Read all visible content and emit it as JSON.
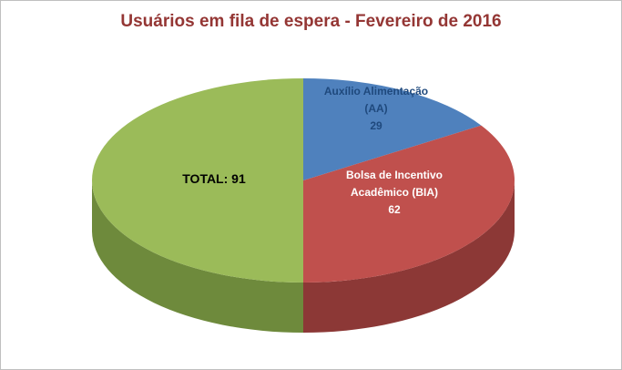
{
  "chart_data": {
    "type": "pie",
    "style": "pie3d",
    "title": "Usuários em fila de espera - Fevereiro de 2016",
    "title_color": "#943634",
    "start_angle_deg": 0,
    "direction": "clockwise",
    "legend": "none",
    "total_shown_as_slice": true,
    "slices": [
      {
        "label": "Auxílio Alimentação (AA)",
        "value": 29,
        "color": "#4F81BD",
        "side_color": "#38598C",
        "label_color": "#1F497D",
        "label_lines": [
          "Auxílio Alimentação",
          "(AA)",
          "29"
        ]
      },
      {
        "label": "Bolsa de Incentivo Acadêmico (BIA)",
        "value": 62,
        "color": "#C0504D",
        "side_color": "#8C3836",
        "label_color": "#FFFFFF",
        "label_lines": [
          "Bolsa de Incentivo",
          "Acadêmico (BIA)",
          "62"
        ]
      },
      {
        "label": "TOTAL",
        "value": 91,
        "color": "#9BBB59",
        "side_color": "#6E8A3C",
        "label_color": "#000000",
        "label_lines": [
          "TOTAL: 91"
        ]
      }
    ]
  }
}
